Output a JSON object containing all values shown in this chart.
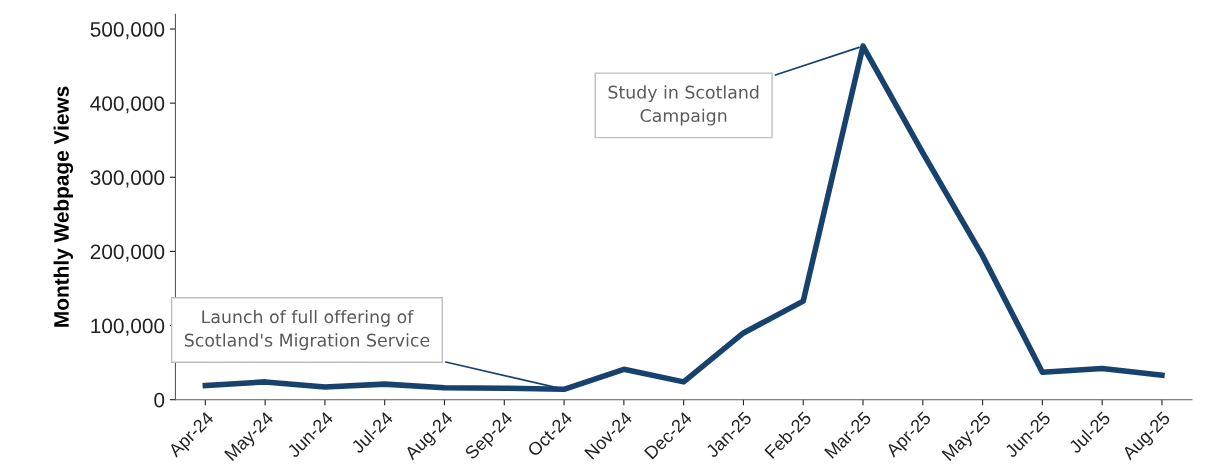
{
  "chart_data": {
    "type": "line",
    "ylabel": "Monthly Webpage Views",
    "categories": [
      "Apr-24",
      "May-24",
      "Jun-24",
      "Jul-24",
      "Aug-24",
      "Sep-24",
      "Oct-24",
      "Nov-24",
      "Dec-24",
      "Jan-25",
      "Feb-25",
      "Mar-25",
      "Apr-25",
      "May-25",
      "Jun-25",
      "Jul-25",
      "Aug-25"
    ],
    "series": [
      {
        "color": "#17426e",
        "values": [
          19000,
          24000,
          17000,
          21000,
          16000,
          15500,
          14000,
          41000,
          24000,
          90000,
          133000,
          477000,
          333000,
          194000,
          37000,
          42000,
          33000
        ]
      }
    ],
    "ylim": [
      0,
      520000
    ],
    "yticks": [
      {
        "value": 0,
        "label": "0"
      },
      {
        "value": 100000,
        "label": "100,000"
      },
      {
        "value": 200000,
        "label": "200,000"
      },
      {
        "value": 300000,
        "label": "300,000"
      },
      {
        "value": 400000,
        "label": "400,000"
      },
      {
        "value": 500000,
        "label": "500,000"
      }
    ],
    "grid": false,
    "legend": false,
    "marker": "none",
    "line_style": "solid",
    "annotations": [
      {
        "text": "Launch of full offering of\nScotland's Migration Service",
        "x": "Oct-24",
        "y": 14000
      },
      {
        "text": "Study in Scotland\nCampaign",
        "x": "Mar-25",
        "y": 477000
      }
    ]
  }
}
